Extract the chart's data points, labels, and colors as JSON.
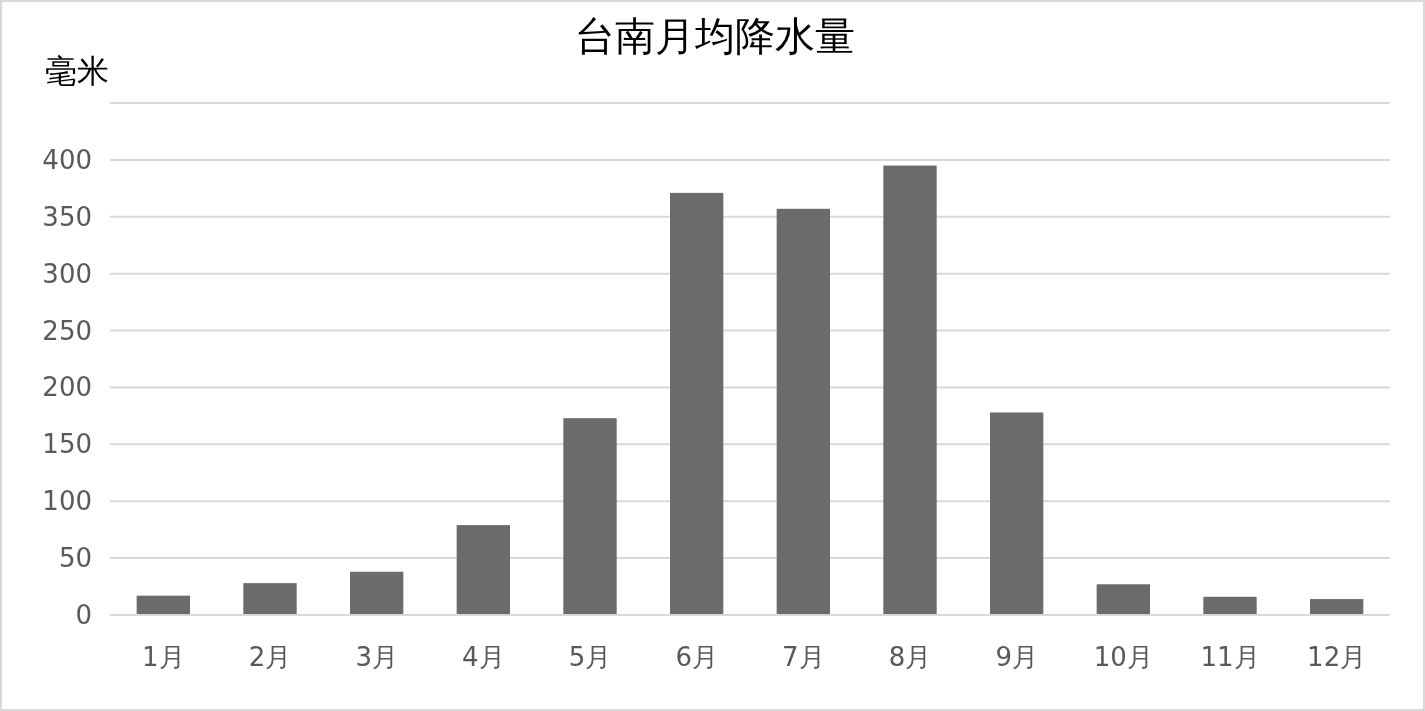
{
  "chart_data": {
    "type": "bar",
    "title": "台南月均降水量",
    "ylabel": "毫米",
    "categories": [
      "1月",
      "2月",
      "3月",
      "4月",
      "5月",
      "6月",
      "7月",
      "8月",
      "9月",
      "10月",
      "11月",
      "12月"
    ],
    "values": [
      17,
      28,
      38,
      79,
      173,
      371,
      357,
      395,
      178,
      27,
      16,
      14
    ],
    "color": "#6b6b6b",
    "ylim": [
      0,
      450
    ],
    "yticks": [
      0,
      50,
      100,
      150,
      200,
      250,
      300,
      350,
      400,
      {
        "value": 450,
        "label": null
      }
    ],
    "grid": "y"
  }
}
